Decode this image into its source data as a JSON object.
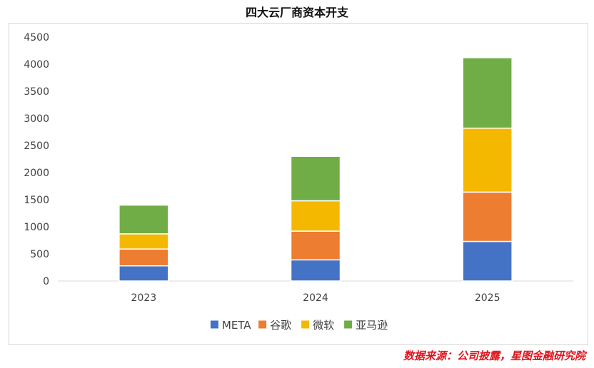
{
  "title": "四大云厂商资本开支",
  "source": "数据来源：公司披露，星图金融研究院",
  "colors": {
    "source_text": "#e0141e",
    "axis_text": "#404040",
    "gridline": "#d9d9d9"
  },
  "chart_data": {
    "type": "bar",
    "stacked": true,
    "title": "四大云厂商资本开支",
    "categories": [
      "2023",
      "2024",
      "2025"
    ],
    "series": [
      {
        "name": "META",
        "color": "#4472c4",
        "values": [
          280,
          390,
          730
        ]
      },
      {
        "name": "谷歌",
        "color": "#ed7d31",
        "values": [
          310,
          530,
          910
        ]
      },
      {
        "name": "微软",
        "color": "#f5b800",
        "values": [
          280,
          560,
          1180
        ]
      },
      {
        "name": "亚马逊",
        "color": "#70ad47",
        "values": [
          530,
          820,
          1300
        ]
      }
    ],
    "ylim": [
      0,
      4500
    ],
    "yticks": [
      0,
      500,
      1000,
      1500,
      2000,
      2500,
      3000,
      3500,
      4000,
      4500
    ],
    "xlabel": "",
    "ylabel": "",
    "grid": false,
    "legend": "bottom"
  }
}
